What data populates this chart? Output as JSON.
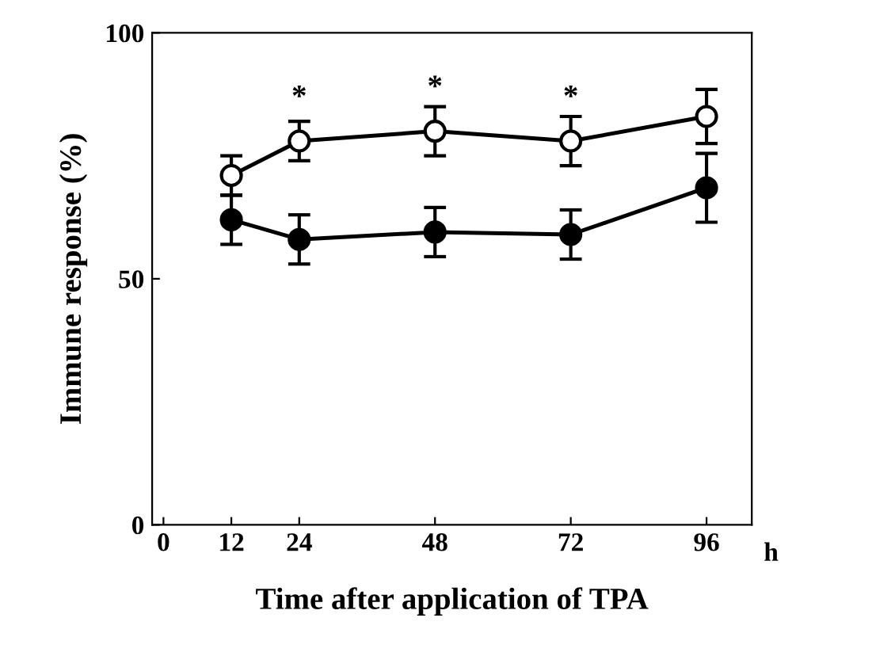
{
  "chart_data": {
    "type": "line",
    "xlabel": "Time after application of TPA",
    "ylabel": "Immune response (%)",
    "x": [
      12,
      24,
      48,
      72,
      96
    ],
    "series": [
      {
        "color": "#000000",
        "marker": "circle",
        "values": [
          71,
          78,
          80,
          78,
          83
        ],
        "errors": [
          4,
          4,
          5,
          5,
          5.5
        ]
      },
      {
        "color": "#000000",
        "marker": "circle",
        "values": [
          62,
          58,
          59.5,
          59,
          68.5
        ],
        "errors": [
          5,
          5,
          5,
          5,
          7
        ]
      }
    ],
    "xlim": [
      -2,
      104
    ],
    "xticks": [
      0,
      12,
      24,
      48,
      72,
      96
    ],
    "ylim": [
      0,
      100
    ],
    "yticks": [
      0,
      50,
      100
    ],
    "grid": false,
    "line_style": "solid",
    "annotations": [
      {
        "text": "*",
        "x": 24,
        "y": 78
      },
      {
        "text": "*",
        "x": 48,
        "y": 80
      },
      {
        "text": "*",
        "x": 72,
        "y": 78
      },
      "h"
    ]
  }
}
